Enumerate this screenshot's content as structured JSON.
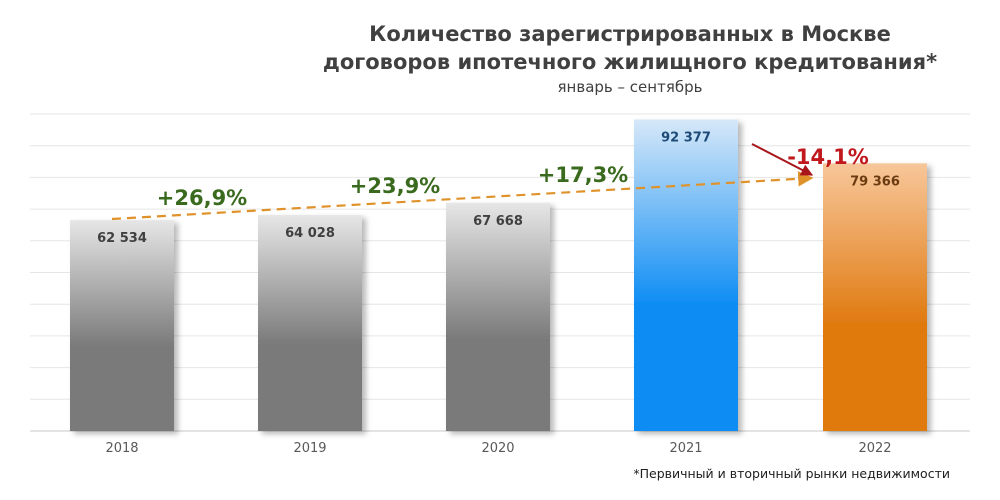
{
  "header": {
    "title_line1": "Количество зарегистрированных в Москве",
    "title_line2": "договоров ипотечного жилищного кредитования*",
    "subtitle": "январь – сентябрь",
    "footnote": "*Первичный и вторичный рынки недвижимости"
  },
  "colors": {
    "gray_top": "#e6e6e6",
    "gray_bottom": "#7a7a7a",
    "blue_top": "#d6e8f8",
    "blue_bottom": "#0c8cf4",
    "orange_top": "#f7c699",
    "orange_bottom": "#e07a10",
    "growth_label": "#3a6a1e",
    "decline_label": "#c0181d",
    "trend_line": "#e0922a",
    "decline_arrow": "#a8161c",
    "label_gray": "#404040",
    "label_blue": "#1e4a78",
    "label_orange": "#6a3a10"
  },
  "chart_data": {
    "type": "bar",
    "categories": [
      "2018",
      "2019",
      "2020",
      "2021",
      "2022"
    ],
    "values": [
      62534,
      64028,
      67668,
      92377,
      79366
    ],
    "value_labels": [
      "62 534",
      "64 028",
      "67 668",
      "92 377",
      "79 366"
    ],
    "bar_colors": [
      "gray",
      "gray",
      "gray",
      "blue",
      "orange"
    ],
    "ylim": [
      0,
      94000
    ],
    "grid": true,
    "title": "Количество зарегистрированных в Москве договоров ипотечного жилищного кредитования*",
    "subtitle": "январь – сентябрь",
    "xlabel": "",
    "ylabel": "",
    "annotations": [
      {
        "text": "+26,9%",
        "near_category": "2018",
        "kind": "growth"
      },
      {
        "text": "+23,9%",
        "near_category": "2019",
        "kind": "growth"
      },
      {
        "text": "+17,3%",
        "near_category": "2020",
        "kind": "growth"
      },
      {
        "text": "-14,1%",
        "near_category": "2022",
        "kind": "decline"
      }
    ]
  }
}
